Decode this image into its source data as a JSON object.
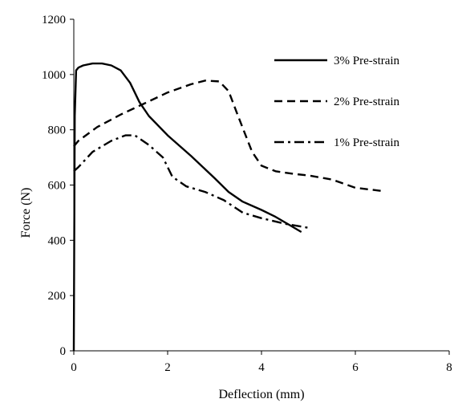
{
  "chart_data": {
    "type": "line",
    "title": "",
    "xlabel": "Deflection (mm)",
    "ylabel": "Force (N)",
    "xlim": [
      0,
      8
    ],
    "ylim": [
      0,
      1200
    ],
    "xticks": [
      0,
      2,
      4,
      6,
      8
    ],
    "yticks": [
      0,
      200,
      400,
      600,
      800,
      1000,
      1200
    ],
    "xtick_labels": [
      "0",
      "2",
      "4",
      "6",
      "8"
    ],
    "ytick_labels": [
      "0",
      "200",
      "400",
      "600",
      "800",
      "1000",
      "1200"
    ],
    "grid": false,
    "legend_position": "top-right",
    "series": [
      {
        "name": "3% Pre-strain",
        "style": "solid",
        "color": "#000000",
        "x": [
          0,
          0.02,
          0.05,
          0.1,
          0.2,
          0.4,
          0.6,
          0.8,
          1.0,
          1.2,
          1.4,
          1.6,
          2.0,
          2.5,
          3.0,
          3.3,
          3.6,
          4.0,
          4.3,
          4.6,
          4.85
        ],
        "y": [
          0,
          850,
          1015,
          1025,
          1033,
          1040,
          1040,
          1033,
          1015,
          970,
          900,
          850,
          780,
          705,
          625,
          575,
          540,
          510,
          485,
          455,
          430
        ]
      },
      {
        "name": "2% Pre-strain",
        "style": "dashed",
        "color": "#000000",
        "x": [
          0,
          0.1,
          0.5,
          1.0,
          1.5,
          2.0,
          2.5,
          2.8,
          3.1,
          3.3,
          3.5,
          3.8,
          4.0,
          4.3,
          4.7,
          5.0,
          5.5,
          6.0,
          6.5,
          6.6
        ],
        "y": [
          740,
          760,
          810,
          855,
          895,
          935,
          965,
          978,
          975,
          940,
          850,
          720,
          670,
          650,
          640,
          635,
          620,
          590,
          580,
          578
        ]
      },
      {
        "name": "1% Pre-strain",
        "style": "dashdot",
        "color": "#000000",
        "x": [
          0,
          0.1,
          0.4,
          0.8,
          1.1,
          1.3,
          1.6,
          1.9,
          2.1,
          2.4,
          2.8,
          3.2,
          3.6,
          4.0,
          4.5,
          5.0
        ],
        "y": [
          650,
          665,
          720,
          760,
          780,
          780,
          745,
          700,
          630,
          595,
          575,
          545,
          500,
          480,
          460,
          445
        ]
      }
    ]
  }
}
